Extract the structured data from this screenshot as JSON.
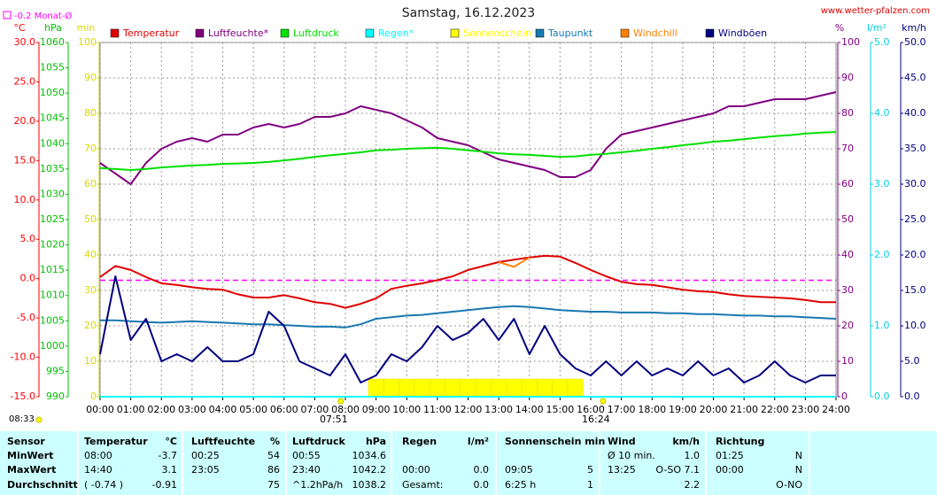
{
  "chart_data": {
    "type": "line",
    "title": "Samstag, 16.12.2023",
    "source": "www.wetter-pfalzen.com",
    "updated": "08:33",
    "monthly_average": {
      "value": -0.2,
      "label": "-0.2 Monat-Ø",
      "color": "#ff00ff"
    },
    "xlim": [
      0,
      24
    ],
    "xticks": [
      {
        "value": 0,
        "label": "00:00"
      },
      {
        "value": 1,
        "label": "01:00"
      },
      {
        "value": 2,
        "label": "02:00"
      },
      {
        "value": 3,
        "label": "03:00"
      },
      {
        "value": 4,
        "label": "04:00"
      },
      {
        "value": 5,
        "label": "05:00"
      },
      {
        "value": 6,
        "label": "06:00"
      },
      {
        "value": 7,
        "label": "07:00"
      },
      {
        "value": 8,
        "label": "08:00"
      },
      {
        "value": 9,
        "label": "09:00"
      },
      {
        "value": 10,
        "label": "10:00"
      },
      {
        "value": 11,
        "label": "11:00"
      },
      {
        "value": 12,
        "label": "12:00"
      },
      {
        "value": 13,
        "label": "13:00"
      },
      {
        "value": 14,
        "label": "14:00"
      },
      {
        "value": 15,
        "label": "15:00"
      },
      {
        "value": 16,
        "label": "16:00"
      },
      {
        "value": 17,
        "label": "17:00"
      },
      {
        "value": 18,
        "label": "18:00"
      },
      {
        "value": 19,
        "label": "19:00"
      },
      {
        "value": 20,
        "label": "20:00"
      },
      {
        "value": 21,
        "label": "21:00"
      },
      {
        "value": 22,
        "label": "22:00"
      },
      {
        "value": 23,
        "label": "23:00"
      },
      {
        "value": 24,
        "label": "24:00"
      }
    ],
    "annotations": [
      {
        "x": 7.85,
        "label": "07:51"
      },
      {
        "x": 16.4,
        "label": "16:24"
      }
    ],
    "axes": [
      {
        "id": "temp",
        "unit": "°C",
        "side": "left",
        "color": "#ff0000",
        "lim": [
          -15,
          30
        ],
        "grid": false,
        "ticks": [
          {
            "value": 30,
            "label": "30.0"
          },
          {
            "value": 25,
            "label": "25.0"
          },
          {
            "value": 20,
            "label": "20.0"
          },
          {
            "value": 15,
            "label": "15.0"
          },
          {
            "value": 10,
            "label": "10.0"
          },
          {
            "value": 5,
            "label": "5.0"
          },
          {
            "value": 0,
            "label": "0.0"
          },
          {
            "value": -5,
            "label": "-5.0"
          },
          {
            "value": -10,
            "label": "-10.0"
          },
          {
            "value": -15,
            "label": "-15.0"
          }
        ]
      },
      {
        "id": "hpa",
        "unit": "hPa",
        "side": "left",
        "color": "#00c000",
        "lim": [
          990,
          1060
        ],
        "grid": false,
        "ticks": [
          990,
          995,
          1000,
          1005,
          1010,
          1015,
          1020,
          1025,
          1030,
          1035,
          1040,
          1045,
          1050,
          1055,
          1060
        ]
      },
      {
        "id": "min",
        "unit": "min",
        "side": "left",
        "color": "#d8d800",
        "lim": [
          0,
          100
        ],
        "grid": true,
        "ticks": [
          0,
          10,
          20,
          30,
          40,
          50,
          60,
          70,
          80,
          90,
          100
        ]
      },
      {
        "id": "pct",
        "unit": "%",
        "side": "right",
        "color": "#800080",
        "lim": [
          0,
          100
        ],
        "grid": false,
        "ticks": [
          0,
          10,
          20,
          30,
          40,
          50,
          60,
          70,
          80,
          90,
          100
        ]
      },
      {
        "id": "rain",
        "unit": "l/m²",
        "side": "right",
        "color": "#00d0e0",
        "lim": [
          0,
          5
        ],
        "grid": false,
        "ticks": [
          {
            "value": 0,
            "label": "0.0"
          },
          {
            "value": 1,
            "label": "1.0"
          },
          {
            "value": 2,
            "label": "2.0"
          },
          {
            "value": 3,
            "label": "3.0"
          },
          {
            "value": 4,
            "label": "4.0"
          },
          {
            "value": 5,
            "label": "5.0"
          }
        ]
      },
      {
        "id": "kmh",
        "unit": "km/h",
        "side": "right",
        "color": "#000080",
        "lim": [
          0,
          50
        ],
        "grid": false,
        "ticks": [
          {
            "value": 0,
            "label": "0.0"
          },
          {
            "value": 5,
            "label": "5.0"
          },
          {
            "value": 10,
            "label": "10.0"
          },
          {
            "value": 15,
            "label": "15.0"
          },
          {
            "value": 20,
            "label": "20.0"
          },
          {
            "value": 25,
            "label": "25.0"
          },
          {
            "value": 30,
            "label": "30.0"
          },
          {
            "value": 35,
            "label": "35.0"
          },
          {
            "value": 40,
            "label": "40.0"
          },
          {
            "value": 45,
            "label": "45.0"
          },
          {
            "value": 50,
            "label": "50.0"
          }
        ]
      }
    ],
    "x": [
      0,
      0.5,
      1,
      1.5,
      2,
      2.5,
      3,
      3.5,
      4,
      4.5,
      5,
      5.5,
      6,
      6.5,
      7,
      7.5,
      8,
      8.5,
      9,
      9.5,
      10,
      10.5,
      11,
      11.5,
      12,
      12.5,
      13,
      13.5,
      14,
      14.5,
      15,
      15.5,
      16,
      16.5,
      17,
      17.5,
      18,
      18.5,
      19,
      19.5,
      20,
      20.5,
      21,
      21.5,
      22,
      22.5,
      23,
      23.5,
      24
    ],
    "series": [
      {
        "name": "Temperatur",
        "color": "#e00000",
        "axis": "temp",
        "kind": "line",
        "values": [
          0.2,
          1.6,
          1.1,
          0.2,
          -0.6,
          -0.8,
          -1.1,
          -1.3,
          -1.4,
          -2.0,
          -2.4,
          -2.4,
          -2.1,
          -2.5,
          -3.0,
          -3.2,
          -3.7,
          -3.2,
          -2.5,
          -1.3,
          -0.9,
          -0.6,
          -0.2,
          0.3,
          1.1,
          1.6,
          2.1,
          2.4,
          2.7,
          2.9,
          2.8,
          2.0,
          1.1,
          0.3,
          -0.4,
          -0.7,
          -0.8,
          -1.1,
          -1.4,
          -1.6,
          -1.7,
          -2.0,
          -2.2,
          -2.3,
          -2.4,
          -2.5,
          -2.7,
          -3.0,
          -3.0
        ]
      },
      {
        "name": "Luftfeuchte*",
        "color": "#800080",
        "axis": "pct",
        "kind": "line",
        "values": [
          66,
          63,
          60,
          66,
          70,
          72,
          73,
          72,
          74,
          74,
          76,
          77,
          76,
          77,
          79,
          79,
          80,
          82,
          81,
          80,
          78,
          76,
          73,
          72,
          71,
          69,
          67,
          66,
          65,
          64,
          62,
          62,
          64,
          70,
          74,
          75,
          76,
          77,
          78,
          79,
          80,
          82,
          82,
          83,
          84,
          84,
          84,
          85,
          86
        ]
      },
      {
        "name": "Luftdruck",
        "color": "#00e000",
        "axis": "hpa",
        "kind": "line",
        "values": [
          1035.2,
          1035.0,
          1034.8,
          1035.0,
          1035.3,
          1035.5,
          1035.7,
          1035.8,
          1036.0,
          1036.1,
          1036.2,
          1036.4,
          1036.7,
          1037.0,
          1037.4,
          1037.7,
          1038.0,
          1038.3,
          1038.7,
          1038.8,
          1039.0,
          1039.1,
          1039.2,
          1039.0,
          1038.7,
          1038.4,
          1038.1,
          1037.9,
          1037.8,
          1037.6,
          1037.4,
          1037.5,
          1037.8,
          1038.0,
          1038.3,
          1038.6,
          1039.0,
          1039.3,
          1039.7,
          1040.0,
          1040.4,
          1040.6,
          1040.9,
          1041.2,
          1041.5,
          1041.7,
          1042.0,
          1042.2,
          1042.3
        ]
      },
      {
        "name": "Regen*",
        "color": "#00ffff",
        "axis": "rain",
        "kind": "line",
        "values": [
          0,
          0,
          0,
          0,
          0,
          0,
          0,
          0,
          0,
          0,
          0,
          0,
          0,
          0,
          0,
          0,
          0,
          0,
          0,
          0,
          0,
          0,
          0,
          0,
          0,
          0,
          0,
          0,
          0,
          0,
          0,
          0,
          0,
          0,
          0,
          0,
          0,
          0,
          0,
          0,
          0,
          0,
          0,
          0,
          0,
          0,
          0,
          0,
          0
        ]
      },
      {
        "name": "Sonnenschein",
        "color": "#ffff00",
        "axis": "min",
        "kind": "bar",
        "values": [
          null,
          null,
          null,
          null,
          null,
          null,
          null,
          null,
          null,
          null,
          null,
          null,
          null,
          null,
          null,
          null,
          null,
          null,
          5,
          5,
          5,
          5,
          5,
          5,
          5,
          5,
          5,
          5,
          5,
          5,
          5,
          5,
          null,
          null,
          null,
          null,
          null,
          null,
          null,
          null,
          null,
          null,
          null,
          null,
          null,
          null,
          null,
          null,
          null
        ]
      },
      {
        "name": "Taupunkt",
        "color": "#1878b0",
        "axis": "temp",
        "kind": "line",
        "values": [
          -5.3,
          -5.3,
          -5.4,
          -5.5,
          -5.6,
          -5.5,
          -5.4,
          -5.5,
          -5.6,
          -5.7,
          -5.8,
          -5.8,
          -5.9,
          -6.0,
          -6.1,
          -6.1,
          -6.2,
          -5.8,
          -5.1,
          -4.9,
          -4.7,
          -4.6,
          -4.4,
          -4.2,
          -4.0,
          -3.8,
          -3.6,
          -3.5,
          -3.6,
          -3.8,
          -4.0,
          -4.1,
          -4.2,
          -4.2,
          -4.3,
          -4.3,
          -4.3,
          -4.4,
          -4.4,
          -4.5,
          -4.5,
          -4.6,
          -4.7,
          -4.7,
          -4.8,
          -4.8,
          -4.9,
          -5.0,
          -5.1
        ]
      },
      {
        "name": "Windchill",
        "color": "#ff8000",
        "axis": "temp",
        "kind": "line",
        "values": [
          null,
          null,
          null,
          null,
          null,
          null,
          null,
          null,
          null,
          null,
          null,
          null,
          null,
          null,
          null,
          null,
          null,
          null,
          null,
          null,
          null,
          null,
          null,
          null,
          null,
          null,
          2.1,
          1.5,
          2.7,
          null,
          null,
          null,
          null,
          null,
          null,
          null,
          null,
          null,
          null,
          null,
          null,
          null,
          null,
          null,
          null,
          null,
          null,
          null,
          null
        ]
      },
      {
        "name": "Windböen",
        "color": "#000080",
        "axis": "kmh",
        "kind": "line",
        "values": [
          6,
          17,
          8,
          11,
          5,
          6,
          5,
          7,
          5,
          5,
          6,
          12,
          10,
          5,
          4,
          3,
          6,
          2,
          3,
          6,
          5,
          7,
          10,
          8,
          9,
          11,
          8,
          11,
          6,
          10,
          6,
          4,
          3,
          5,
          3,
          5,
          3,
          4,
          3,
          5,
          3,
          4,
          2,
          3,
          5,
          3,
          2,
          3,
          3
        ]
      }
    ]
  },
  "table": {
    "header": {
      "label": "Sensor",
      "cells": [
        [
          "Temperatur",
          "°C"
        ],
        [
          "Luftfeuchte",
          "%"
        ],
        [
          "Luftdruck",
          "hPa"
        ],
        [
          "Regen",
          "l/m²"
        ],
        [
          "Sonnenschein min",
          null
        ],
        [
          "Wind",
          "km/h"
        ],
        [
          "Richtung",
          null
        ]
      ]
    },
    "rows": [
      {
        "label": "MinWert",
        "cells": [
          [
            "08:00",
            "-3.7"
          ],
          [
            "00:25",
            "54"
          ],
          [
            "00:55",
            "1034.6"
          ],
          [
            null,
            null
          ],
          [
            null,
            null
          ],
          [
            "Ø 10 min.",
            "1.0"
          ],
          [
            "01:25",
            "N"
          ]
        ]
      },
      {
        "label": "MaxWert",
        "cells": [
          [
            "14:40",
            "3.1"
          ],
          [
            "23:05",
            "86"
          ],
          [
            "23:40",
            "1042.2"
          ],
          [
            "00:00",
            "0.0"
          ],
          [
            "09:05",
            "5"
          ],
          [
            "13:25",
            "O-SO 7.1"
          ],
          [
            "00:00",
            "N"
          ]
        ]
      },
      {
        "label": "Durchschnitt",
        "cells": [
          [
            "( -0.74 )",
            "-0.91"
          ],
          [
            null,
            "75"
          ],
          [
            "^1.2hPa/h",
            "1038.2"
          ],
          [
            "Gesamt:",
            "0.0"
          ],
          [
            "6:25 h",
            "1"
          ],
          [
            null,
            "2.2"
          ],
          [
            null,
            "O-NO"
          ]
        ]
      }
    ]
  }
}
